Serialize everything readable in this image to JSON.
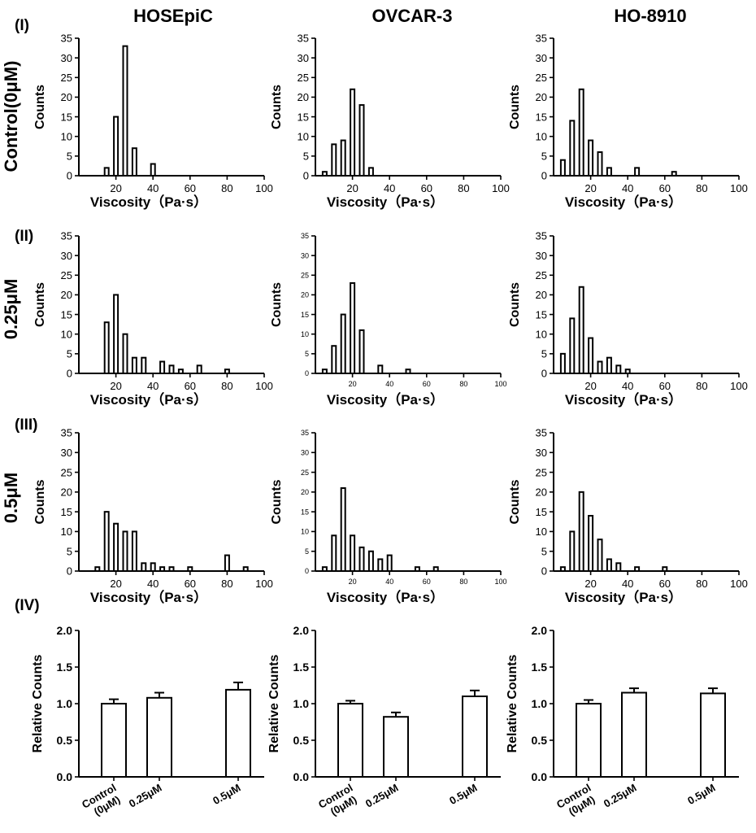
{
  "column_titles": [
    "HOSEpiC",
    "OVCAR-3",
    "HO-8910"
  ],
  "row_markers": [
    "(I)",
    "(II)",
    "(III)",
    "(IV)"
  ],
  "row_labels": [
    "Control(0μM)",
    "0.25μM",
    "0.5μM"
  ],
  "chart_data": [
    {
      "type": "bar",
      "panel": "I-HOSEpiC",
      "xlabel": "Viscosity（Pa·s）",
      "ylabel": "Counts",
      "xlim": [
        0,
        100
      ],
      "xticks": [
        20,
        40,
        60,
        80,
        100
      ],
      "ylim": [
        0,
        35
      ],
      "yticks": [
        0,
        5,
        10,
        15,
        20,
        25,
        30,
        35
      ],
      "x": [
        15,
        20,
        25,
        30,
        40
      ],
      "values": [
        2,
        15,
        33,
        7,
        3
      ]
    },
    {
      "type": "bar",
      "panel": "I-OVCAR-3",
      "xlabel": "Viscosity（Pa·s）",
      "ylabel": "Counts",
      "xlim": [
        0,
        100
      ],
      "xticks": [
        20,
        40,
        60,
        80,
        100
      ],
      "ylim": [
        0,
        35
      ],
      "yticks": [
        0,
        5,
        10,
        15,
        20,
        25,
        30,
        35
      ],
      "x": [
        5,
        10,
        15,
        20,
        25,
        30
      ],
      "values": [
        1,
        8,
        9,
        22,
        18,
        2
      ]
    },
    {
      "type": "bar",
      "panel": "I-HO-8910",
      "xlabel": "Viscosity（Pa·s）",
      "ylabel": "Counts",
      "xlim": [
        0,
        100
      ],
      "xticks": [
        20,
        40,
        60,
        80,
        100
      ],
      "ylim": [
        0,
        35
      ],
      "yticks": [
        0,
        5,
        10,
        15,
        20,
        25,
        30,
        35
      ],
      "x": [
        5,
        10,
        15,
        20,
        25,
        30,
        45,
        65
      ],
      "values": [
        4,
        14,
        22,
        9,
        6,
        2,
        2,
        1
      ]
    },
    {
      "type": "bar",
      "panel": "II-HOSEpiC",
      "xlabel": "Viscosity（Pa·s）",
      "ylabel": "Counts",
      "xlim": [
        0,
        100
      ],
      "xticks": [
        20,
        40,
        60,
        80,
        100
      ],
      "ylim": [
        0,
        35
      ],
      "yticks": [
        0,
        5,
        10,
        15,
        20,
        25,
        30,
        35
      ],
      "x": [
        15,
        20,
        25,
        30,
        35,
        45,
        50,
        55,
        65,
        80
      ],
      "values": [
        13,
        20,
        10,
        4,
        4,
        3,
        2,
        1,
        2,
        1
      ]
    },
    {
      "type": "bar",
      "panel": "II-OVCAR-3",
      "xlabel": "Viscosity（Pa·s）",
      "ylabel": "Counts",
      "xlim": [
        0,
        100
      ],
      "xticks": [
        20,
        40,
        60,
        80,
        100
      ],
      "ylim": [
        0,
        35
      ],
      "yticks": [
        0,
        5,
        10,
        15,
        20,
        25,
        30,
        35
      ],
      "x": [
        5,
        10,
        15,
        20,
        25,
        35,
        50
      ],
      "values": [
        1,
        7,
        15,
        23,
        11,
        2,
        1
      ]
    },
    {
      "type": "bar",
      "panel": "II-HO-8910",
      "xlabel": "Viscosity（Pa·s）",
      "ylabel": "Counts",
      "xlim": [
        0,
        100
      ],
      "xticks": [
        20,
        40,
        60,
        80,
        100
      ],
      "ylim": [
        0,
        35
      ],
      "yticks": [
        0,
        5,
        10,
        15,
        20,
        25,
        30,
        35
      ],
      "x": [
        5,
        10,
        15,
        20,
        25,
        30,
        35,
        40
      ],
      "values": [
        5,
        14,
        22,
        9,
        3,
        4,
        2,
        1
      ]
    },
    {
      "type": "bar",
      "panel": "III-HOSEpiC",
      "xlabel": "Viscosity（Pa·s）",
      "ylabel": "Counts",
      "xlim": [
        0,
        100
      ],
      "xticks": [
        20,
        40,
        60,
        80,
        100
      ],
      "ylim": [
        0,
        35
      ],
      "yticks": [
        0,
        5,
        10,
        15,
        20,
        25,
        30,
        35
      ],
      "x": [
        10,
        15,
        20,
        25,
        30,
        35,
        40,
        45,
        50,
        60,
        80,
        90
      ],
      "values": [
        1,
        15,
        12,
        10,
        10,
        2,
        2,
        1,
        1,
        1,
        4,
        1
      ]
    },
    {
      "type": "bar",
      "panel": "III-OVCAR-3",
      "xlabel": "Viscosity（Pa·s）",
      "ylabel": "Counts",
      "xlim": [
        0,
        100
      ],
      "xticks": [
        20,
        40,
        60,
        80,
        100
      ],
      "ylim": [
        0,
        35
      ],
      "yticks": [
        0,
        5,
        10,
        15,
        20,
        25,
        30,
        35
      ],
      "x": [
        5,
        10,
        15,
        20,
        25,
        30,
        35,
        40,
        55,
        65
      ],
      "values": [
        1,
        9,
        21,
        9,
        6,
        5,
        3,
        4,
        1,
        1
      ]
    },
    {
      "type": "bar",
      "panel": "III-HO-8910",
      "xlabel": "Viscosity（Pa·s）",
      "ylabel": "Counts",
      "xlim": [
        0,
        100
      ],
      "xticks": [
        20,
        40,
        60,
        80,
        100
      ],
      "ylim": [
        0,
        35
      ],
      "yticks": [
        0,
        5,
        10,
        15,
        20,
        25,
        30,
        35
      ],
      "x": [
        5,
        10,
        15,
        20,
        25,
        30,
        35,
        45,
        60
      ],
      "values": [
        1,
        10,
        20,
        14,
        8,
        3,
        2,
        1,
        1
      ]
    },
    {
      "type": "bar",
      "panel": "IV-HOSEpiC",
      "ylabel": "Relative Counts",
      "ylim": [
        0,
        2
      ],
      "yticks": [
        "0.0",
        "0.5",
        "1.0",
        "1.5",
        "2.0"
      ],
      "categories": [
        "Control\n(0μM)",
        "0.25μM",
        "0.5μM"
      ],
      "values": [
        1.0,
        1.08,
        1.19
      ],
      "errors": [
        0.06,
        0.07,
        0.1
      ]
    },
    {
      "type": "bar",
      "panel": "IV-OVCAR-3",
      "ylabel": "Relative Counts",
      "ylim": [
        0,
        2
      ],
      "yticks": [
        "0.0",
        "0.5",
        "1.0",
        "1.5",
        "2.0"
      ],
      "categories": [
        "Control\n(0μM)",
        "0.25μM",
        "0.5μM"
      ],
      "values": [
        1.0,
        0.82,
        1.1
      ],
      "errors": [
        0.04,
        0.06,
        0.08
      ]
    },
    {
      "type": "bar",
      "panel": "IV-HO-8910",
      "ylabel": "Relative Counts",
      "ylim": [
        0,
        2
      ],
      "yticks": [
        "0.0",
        "0.5",
        "1.0",
        "1.5",
        "2.0"
      ],
      "categories": [
        "Control\n(0μM)",
        "0.25μM",
        "0.5μM"
      ],
      "values": [
        1.0,
        1.15,
        1.14
      ],
      "errors": [
        0.05,
        0.06,
        0.07
      ]
    }
  ]
}
